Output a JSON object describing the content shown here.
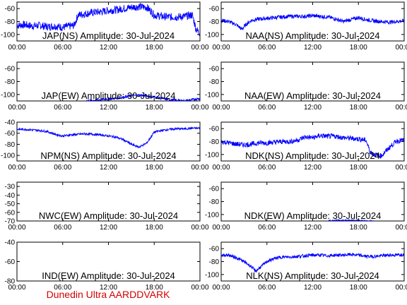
{
  "credit": "Dunedin Ultra AARDDVARK",
  "colors": {
    "trace": "#0000ff",
    "axis": "#000000",
    "credit": "#d40000"
  },
  "chart_data": [
    {
      "type": "line",
      "title": "JAP(NS) Amplitude: 30-Jul-2024",
      "x_ticks": [
        "00:00",
        "06:00",
        "12:00",
        "18:00",
        "00:00"
      ],
      "y_ticks": [
        "-100",
        "-80",
        "-60"
      ],
      "ylim": [
        -110,
        -50
      ],
      "series": [
        {
          "x": [
            0,
            1,
            2,
            3,
            4,
            5,
            6,
            7,
            7.5,
            8,
            9,
            10,
            11,
            12,
            13,
            14,
            15,
            16,
            17,
            17.5,
            18,
            19,
            20,
            21,
            22,
            22.5,
            23,
            23.5,
            24
          ],
          "y": [
            -86,
            -85,
            -87,
            -86,
            -88,
            -87,
            -89,
            -87,
            -86,
            -70,
            -68,
            -66,
            -65,
            -63,
            -62,
            -60,
            -58,
            -57,
            -58,
            -63,
            -70,
            -72,
            -73,
            -73,
            -72,
            -71,
            -70,
            -92,
            -98
          ],
          "noise": 6
        }
      ]
    },
    {
      "type": "line",
      "title": "NAA(NS) Amplitude: 30-Jul-2024",
      "x_ticks": [
        "00:00",
        "06:00",
        "12:00",
        "18:00",
        "00:00"
      ],
      "y_ticks": [
        "-100",
        "-80",
        "-60"
      ],
      "ylim": [
        -110,
        -50
      ],
      "series": [
        {
          "x": [
            0,
            1,
            2,
            2.7,
            3.3,
            4,
            5,
            6,
            7,
            8,
            9,
            10,
            11,
            12,
            13,
            14,
            15,
            16,
            17,
            18,
            19,
            20,
            21,
            22,
            23,
            24
          ],
          "y": [
            -78,
            -80,
            -85,
            -92,
            -84,
            -78,
            -76,
            -75,
            -74,
            -73,
            -72,
            -72,
            -72,
            -71,
            -72,
            -73,
            -76,
            -80,
            -77,
            -74,
            -77,
            -79,
            -80,
            -81,
            -80,
            -79
          ],
          "noise": 3
        }
      ]
    },
    {
      "type": "line",
      "title": "JAP(EW) Amplitude: 30-Jul-2024",
      "x_ticks": [
        "00:00",
        "06:00",
        "12:00",
        "18:00",
        "00:00"
      ],
      "y_ticks": [
        "-100",
        "-80",
        "-60"
      ],
      "ylim": [
        -110,
        -50
      ],
      "series": [
        {
          "x": [
            9,
            10,
            11,
            12,
            13,
            14,
            15,
            16,
            17,
            18,
            19,
            20,
            21,
            22,
            23,
            24
          ],
          "y": [
            -110,
            -109,
            -108,
            -107,
            -106,
            -104,
            -102,
            -101,
            -102,
            -104,
            -106,
            -108,
            -109,
            -110,
            -108,
            -106
          ],
          "noise": 2
        }
      ]
    },
    {
      "type": "line",
      "title": "NAA(EW) Amplitude: 30-Jul-2024",
      "x_ticks": [
        "00:00",
        "06:00",
        "12:00",
        "18:00",
        "00:00"
      ],
      "y_ticks": [
        "-100",
        "-80",
        "-60"
      ],
      "ylim": [
        -110,
        -50
      ],
      "series": []
    },
    {
      "type": "line",
      "title": "NPM(NS) Amplitude: 30-Jul-2024",
      "x_ticks": [
        "00:00",
        "06:00",
        "12:00",
        "18:00",
        "00:00"
      ],
      "y_ticks": [
        "-100",
        "-80",
        "-60",
        "-40"
      ],
      "ylim": [
        -110,
        -40
      ],
      "series": [
        {
          "x": [
            0,
            1,
            2,
            3,
            4,
            5,
            6,
            7,
            8,
            9,
            10,
            11,
            12,
            13,
            14,
            15,
            16,
            17,
            18,
            19,
            20,
            21,
            22,
            23,
            24
          ],
          "y": [
            -53,
            -53,
            -54,
            -55,
            -57,
            -62,
            -65,
            -63,
            -62,
            -61,
            -62,
            -63,
            -65,
            -67,
            -72,
            -80,
            -85,
            -78,
            -58,
            -55,
            -53,
            -52,
            -52,
            -51,
            -51
          ],
          "noise": 2
        }
      ]
    },
    {
      "type": "line",
      "title": "NDK(NS) Amplitude: 30-Jul-2024",
      "x_ticks": [
        "00:00",
        "06:00",
        "12:00",
        "18:00",
        "00:00"
      ],
      "y_ticks": [
        "-100",
        "-80",
        "-60"
      ],
      "ylim": [
        -110,
        -50
      ],
      "series": [
        {
          "x": [
            0,
            1,
            2,
            3,
            4,
            5,
            6,
            7,
            8,
            9,
            10,
            11,
            12,
            13,
            14,
            15,
            16,
            17,
            18,
            19,
            19.5,
            20,
            21,
            22,
            23,
            24
          ],
          "y": [
            -80,
            -82,
            -84,
            -85,
            -84,
            -82,
            -82,
            -81,
            -80,
            -80,
            -78,
            -73,
            -74,
            -71,
            -72,
            -72,
            -74,
            -75,
            -76,
            -78,
            -95,
            -100,
            -102,
            -90,
            -79,
            -78
          ],
          "noise": 4
        }
      ]
    },
    {
      "type": "line",
      "title": "NWC(EW) Amplitude: 30-Jul-2024",
      "x_ticks": [
        "00:00",
        "06:00",
        "12:00",
        "18:00",
        "00:00"
      ],
      "y_ticks": [
        "-70",
        "-60",
        "-50",
        "-40",
        "-30"
      ],
      "ylim": [
        -70,
        -25
      ],
      "series": []
    },
    {
      "type": "line",
      "title": "NDK(EW) Amplitude: 30-Jul-2024",
      "x_ticks": [
        "00:00",
        "06:00",
        "12:00",
        "18:00",
        "00:00"
      ],
      "y_ticks": [
        "-100",
        "-80",
        "-60"
      ],
      "ylim": [
        -110,
        -50
      ],
      "series": [
        {
          "x": [
            14,
            15,
            16,
            17,
            18,
            19,
            20
          ],
          "y": [
            -110,
            -109,
            -109,
            -109,
            -109,
            -110,
            -110
          ],
          "noise": 1
        }
      ]
    },
    {
      "type": "line",
      "title": "IND(EW) Amplitude: 30-Jul-2024",
      "x_ticks": [
        "00:00",
        "06:00",
        "12:00",
        "18:00",
        "00:00"
      ],
      "y_ticks": [
        "-80",
        "-60",
        "-40"
      ],
      "ylim": [
        -80,
        -40
      ],
      "series": []
    },
    {
      "type": "line",
      "title": "NLK(NS) Amplitude: 30-Jul-2024",
      "x_ticks": [
        "00:00",
        "06:00",
        "12:00",
        "18:00",
        "00:00"
      ],
      "y_ticks": [
        "-100",
        "-80",
        "-60"
      ],
      "ylim": [
        -110,
        -50
      ],
      "series": [
        {
          "x": [
            0,
            1,
            2,
            3,
            4,
            4.5,
            5,
            6,
            7,
            8,
            9,
            10,
            11,
            12,
            13,
            14,
            15,
            16,
            17,
            18,
            19,
            20,
            21,
            22,
            23,
            24
          ],
          "y": [
            -70,
            -70,
            -74,
            -80,
            -88,
            -95,
            -90,
            -80,
            -75,
            -73,
            -73,
            -72,
            -71,
            -70,
            -70,
            -71,
            -70,
            -70,
            -69,
            -70,
            -72,
            -72,
            -71,
            -70,
            -70,
            -69
          ],
          "noise": 2.5
        }
      ]
    }
  ]
}
